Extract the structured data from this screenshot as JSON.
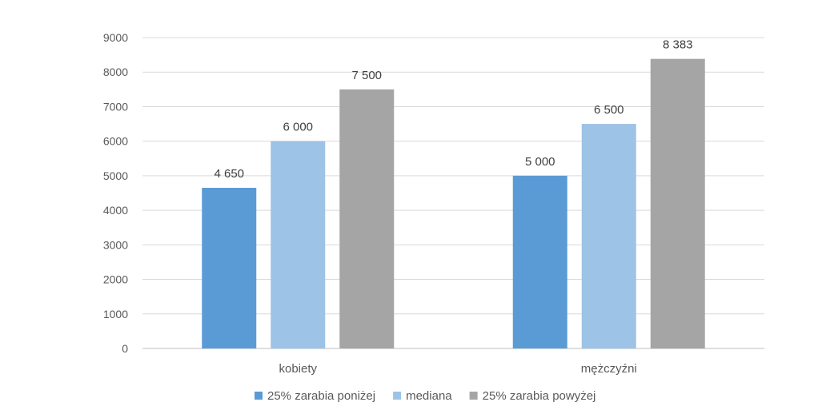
{
  "chart_data": {
    "type": "bar",
    "title": "",
    "xlabel": "",
    "ylabel": "",
    "ylim": [
      0,
      9000
    ],
    "yticks": [
      0,
      1000,
      2000,
      3000,
      4000,
      5000,
      6000,
      7000,
      8000,
      9000
    ],
    "grid": true,
    "legend_position": "bottom",
    "categories": [
      "kobiety",
      "mężczyźni"
    ],
    "series": [
      {
        "name": "25% zarabia poniżej",
        "color": "#5b9bd5",
        "values": [
          4650,
          5000
        ],
        "labels": [
          "4 650",
          "5 000"
        ]
      },
      {
        "name": "mediana",
        "color": "#9dc3e6",
        "values": [
          6000,
          6500
        ],
        "labels": [
          "6 000",
          "6 500"
        ]
      },
      {
        "name": "25% zarabia powyżej",
        "color": "#a5a5a5",
        "values": [
          7500,
          8383
        ],
        "labels": [
          "7 500",
          "8 383"
        ]
      }
    ]
  }
}
